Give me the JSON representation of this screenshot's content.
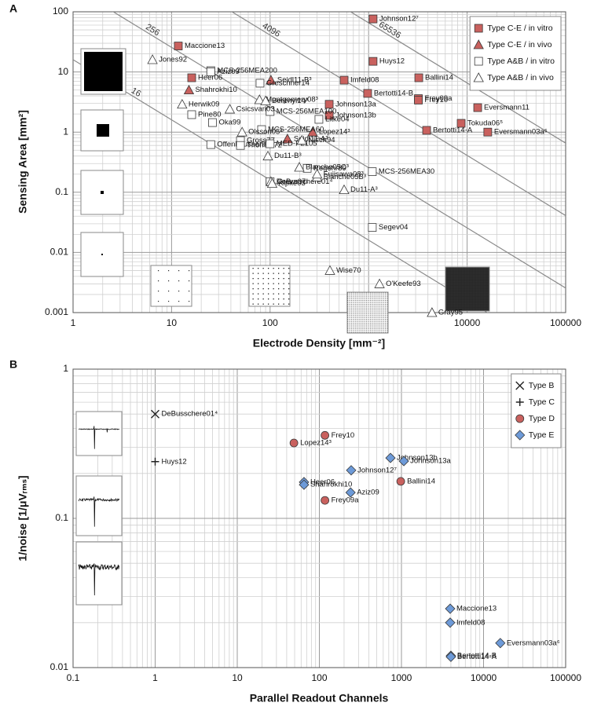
{
  "chart_data": [
    {
      "type": "scatter",
      "panel": "A",
      "xlabel": "Electrode Density [mm⁻²]",
      "ylabel": "Sensing Area [mm²]",
      "xscale": "log",
      "yscale": "log",
      "xlim": [
        1,
        100000
      ],
      "ylim": [
        0.001,
        100
      ],
      "xticks": [
        1,
        10,
        100,
        1000,
        10000,
        100000
      ],
      "yticks": [
        0.001,
        0.01,
        0.1,
        1,
        10,
        100
      ],
      "grid": true,
      "legend": "upper right",
      "iso_lines": [
        16,
        256,
        4096,
        65536
      ],
      "series": [
        {
          "name": "Type C-E / in vitro",
          "marker": "square",
          "color": "#c9615e",
          "labels": [
            "Johnson12⁷",
            "Maccione13",
            "Huys12",
            "Ballini14",
            "Heer06",
            "Imfeld08",
            "Bertotti14-B",
            "Frey09a",
            "Frey10",
            "Eversmann11",
            "Johnson13a",
            "Johnson13b",
            "Tokuda06⁵",
            "Bertotti14-A",
            "Eversmann03a⁶"
          ],
          "x": [
            1110,
            11.7,
            1110,
            3230,
            16,
            564,
            977,
            3200,
            3200,
            12800,
            398,
            398,
            8700,
            3880,
            16200
          ],
          "values": [
            76,
            27,
            15,
            8,
            8,
            7.3,
            4.4,
            3.6,
            3.4,
            2.55,
            2.9,
            1.9,
            1.4,
            1.07,
            1
          ]
        },
        {
          "name": "Type C-E / in vivo",
          "marker": "triangle",
          "color": "#c9615e",
          "labels": [
            "Seidl11-B³",
            "Shahrokhi10",
            "Lopez14³",
            "Seidl11-A³"
          ],
          "x": [
            102,
            15,
            270,
            150
          ],
          "values": [
            7.3,
            5,
            1,
            0.77
          ]
        },
        {
          "name": "Type A&B / in vitro",
          "marker": "square",
          "color": "#ffffff",
          "labels": [
            "MCS-256MEA200",
            "Aziz09",
            "Greschner14",
            "Pine80",
            "MCS-256MEA100",
            "Oka99",
            "Litke04",
            "MCS-256MEA60",
            "Offenhäusser97",
            "Gross77",
            "Thomas72",
            "MED-P2105",
            "Regehr89",
            "DeBusschere01⁴",
            "MCS-256MEA30",
            "Segev04"
          ],
          "x": [
            25,
            25,
            79,
            16,
            100,
            26,
            313,
            82,
            25,
            50,
            50,
            100,
            238,
            100,
            1090,
            1090
          ],
          "values": [
            10.5,
            10,
            6.5,
            1.95,
            2.2,
            1.44,
            1.63,
            1.1,
            0.62,
            0.72,
            0.6,
            0.64,
            0.25,
            0.15,
            0.22,
            0.026
          ]
        },
        {
          "name": "Type A&B / in vivo",
          "marker": "triangle",
          "color": "#ffffff",
          "labels": [
            "Jones92",
            "Herwik09",
            "Csicsvari03",
            "Montgomery08³",
            "Berényi14³",
            "Olsson05³",
            "Nisch94",
            "Du11-B³",
            "Blanche05C³",
            "Greve07",
            "Kipke03³",
            "Blanche05B³",
            "Fujisawa08³",
            "Du11-A³",
            "Wise70",
            "O'Keefe93",
            "Gray95"
          ],
          "x": [
            6.4,
            12.8,
            39,
            78,
            90,
            52,
            210,
            95,
            198,
            102,
            105,
            300,
            300,
            564,
            405,
            1290,
            4400
          ],
          "values": [
            16,
            2.9,
            2.4,
            3.45,
            3.3,
            1,
            0.73,
            0.4,
            0.26,
            0.15,
            0.14,
            0.18,
            0.2,
            0.11,
            0.005,
            0.003,
            0.001
          ]
        }
      ]
    },
    {
      "type": "scatter",
      "panel": "B",
      "xlabel": "Parallel Readout Channels",
      "ylabel": "1/noise [1/μVᵣₘₛ]",
      "xscale": "log",
      "yscale": "log",
      "xlim": [
        0.1,
        100000
      ],
      "ylim": [
        0.01,
        1
      ],
      "xticks": [
        0.1,
        1,
        10,
        100,
        1000,
        10000,
        100000
      ],
      "yticks": [
        0.01,
        0.1,
        1
      ],
      "grid": true,
      "legend": "upper right",
      "series": [
        {
          "name": "Type B",
          "marker": "cross",
          "color": "#222222",
          "labels": [
            "DeBusschere01⁴"
          ],
          "x": [
            1
          ],
          "values": [
            0.5
          ]
        },
        {
          "name": "Type C",
          "marker": "plus",
          "color": "#222222",
          "labels": [
            "Huys12"
          ],
          "x": [
            1
          ],
          "values": [
            0.24
          ]
        },
        {
          "name": "Type D",
          "marker": "circle",
          "color": "#c9615e",
          "labels": [
            "Frey10",
            "Lopez14³",
            "Ballini14",
            "Frey09a"
          ],
          "x": [
            117,
            49,
            980,
            117
          ],
          "values": [
            0.36,
            0.32,
            0.177,
            0.132
          ]
        },
        {
          "name": "Type E",
          "marker": "diamond",
          "color": "#6d9ad8",
          "labels": [
            "Johnson13b",
            "Johnson13a",
            "Johnson12⁷",
            "Heer06",
            "Shahrokhi10",
            "Aziz09",
            "Maccione13",
            "Imfeld08",
            "Eversmann03a⁶",
            "Bertotti14-B",
            "Bertotti14-A"
          ],
          "x": [
            735,
            1070,
            244,
            65,
            65,
            240,
            3920,
            3920,
            16000,
            4000,
            4000
          ],
          "values": [
            0.254,
            0.242,
            0.21,
            0.175,
            0.168,
            0.149,
            0.0248,
            0.02,
            0.0146,
            0.012,
            0.0118
          ]
        }
      ]
    }
  ]
}
